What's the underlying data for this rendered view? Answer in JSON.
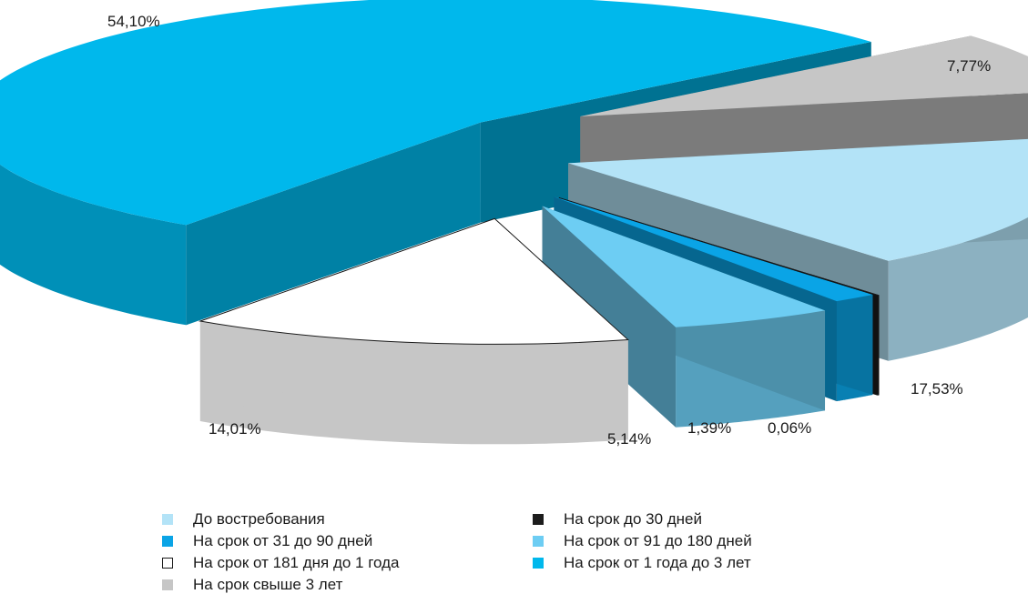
{
  "chart_data": {
    "type": "pie",
    "variant": "3d-exploded",
    "title": "",
    "slices": [
      {
        "label": "До востребования",
        "value": 17.53,
        "value_label": "17,53%",
        "color": "#b3e3f7"
      },
      {
        "label": "На срок до 30 дней",
        "value": 0.06,
        "value_label": "0,06%",
        "color": "#1c1c1c"
      },
      {
        "label": "На срок от 31 до 90 дней",
        "value": 1.39,
        "value_label": "1,39%",
        "color": "#0aa4e6"
      },
      {
        "label": "На срок от 91  до 180 дней",
        "value": 5.14,
        "value_label": "5,14%",
        "color": "#6dcdf3"
      },
      {
        "label": "На срок от 181 дня до 1 года",
        "value": 14.01,
        "value_label": "14,01%",
        "color": "#ffffff"
      },
      {
        "label": "На срок от 1 года до 3 лет",
        "value": 54.1,
        "value_label": "54,10%",
        "color": "#00b8ec"
      },
      {
        "label": "На срок свыше 3 лет",
        "value": 7.77,
        "value_label": "7,77%",
        "color": "#c6c6c6"
      }
    ],
    "legend": {
      "placement": "bottom",
      "columns": [
        [
          "До востребования",
          "На срок от 31 до 90 дней",
          "На срок от 181 дня до 1 года",
          "На срок свыше 3 лет"
        ],
        [
          "На срок до 30 дней",
          "На срок от 91  до 180 дней",
          "На срок от 1 года до 3 лет"
        ]
      ]
    }
  }
}
